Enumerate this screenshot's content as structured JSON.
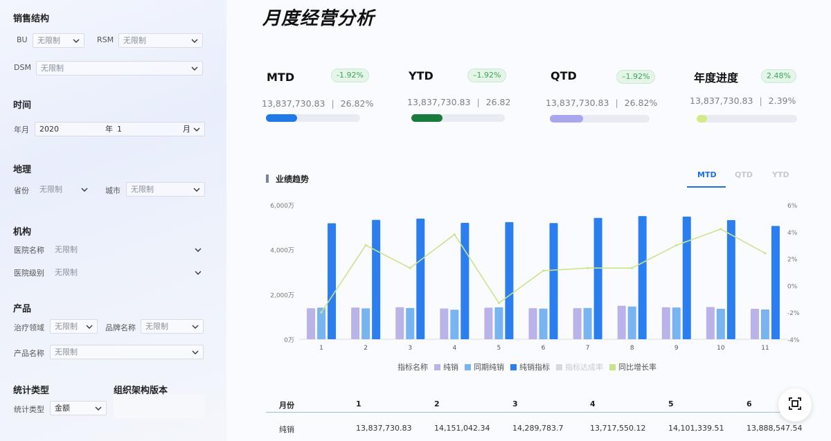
{
  "sidebar": {
    "sections": {
      "sales": "销售结构",
      "time": "时间",
      "geo": "地理",
      "org": "机构",
      "product": "产品",
      "stat": "统计类型",
      "org_version": "组织架构版本"
    },
    "labels": {
      "bu": "BU",
      "rsm": "RSM",
      "dsm": "DSM",
      "year_month": "年月",
      "year_unit": "年",
      "month_unit": "月",
      "province": "省份",
      "city": "城市",
      "hospital_name": "医院名称",
      "hospital_level": "医院级别",
      "therapy": "治疗领域",
      "brand": "品牌名称",
      "product_name": "产品名称",
      "stat_type": "统计类型"
    },
    "values": {
      "unlimited": "无限制",
      "year": "2020",
      "month": "1",
      "stat_type": "金额"
    }
  },
  "main": {
    "title": "月度经营分析",
    "kpis": [
      {
        "name": "MTD",
        "badge": "-1.92%",
        "value": "13,837,730.83",
        "pct": "26.82%",
        "progress": 0.33,
        "color": "#1f7ae8"
      },
      {
        "name": "YTD",
        "badge": "–1.92%",
        "value": "13,837,730.83",
        "pct": "26.82",
        "progress": 0.33,
        "color": "#187a3c"
      },
      {
        "name": "QTD",
        "badge": "–1.92%",
        "value": "13,837,730.83",
        "pct": "26.82%",
        "progress": 0.33,
        "color": "#a9a6ee"
      },
      {
        "name": "年度进度",
        "badge": "2.48%",
        "value": "13,837,730.83",
        "pct": "2.39%",
        "progress": 0.1,
        "color": "#d3ea85"
      }
    ],
    "section_title": "业绩趋势",
    "tabs": [
      "MTD",
      "QTD",
      "YTD"
    ],
    "legend": {
      "title": "指标名称",
      "items": [
        {
          "name": "纯销",
          "color": "#b9b3ea"
        },
        {
          "name": "同期纯销",
          "color": "#79b4f2"
        },
        {
          "name": "纯销指标",
          "color": "#2b7ef0"
        },
        {
          "name": "指标达成率",
          "color": "#d7d9de"
        },
        {
          "name": "同比增长率",
          "color": "#c9e58a"
        }
      ]
    },
    "table": {
      "headers": [
        "月份",
        "1",
        "2",
        "3",
        "4",
        "5",
        "6"
      ],
      "rows": [
        {
          "label": "纯销",
          "values": [
            "13,837,730.83",
            "14,151,042.34",
            "14,289,783.7",
            "13,717,550.12",
            "14,101,339.51",
            "13,888,547.54"
          ]
        }
      ]
    }
  },
  "chart_data": {
    "type": "bar",
    "categories": [
      "1",
      "2",
      "3",
      "4",
      "5",
      "6",
      "7",
      "8",
      "9",
      "10",
      "11"
    ],
    "y_left_ticks": [
      "0万",
      "2,000万",
      "4,000万",
      "6,000万"
    ],
    "y_left_range": [
      0,
      6000
    ],
    "y_right_ticks": [
      "-4%",
      "-2%",
      "0%",
      "2%",
      "4%",
      "6%"
    ],
    "y_right_range": [
      -4,
      6
    ],
    "series": [
      {
        "name": "纯销",
        "axis": "left",
        "type": "bar",
        "color": "#b9b3ea",
        "values": [
          1384,
          1415,
          1429,
          1372,
          1410,
          1389,
          1389,
          1495,
          1425,
          1440,
          1360
        ]
      },
      {
        "name": "同期纯销",
        "axis": "left",
        "type": "bar",
        "color": "#79b4f2",
        "values": [
          1410,
          1380,
          1395,
          1320,
          1425,
          1370,
          1395,
          1460,
          1420,
          1360,
          1330
        ]
      },
      {
        "name": "纯销指标",
        "axis": "left",
        "type": "bar",
        "color": "#2b7ef0",
        "values": [
          5180,
          5330,
          5390,
          5200,
          5230,
          5190,
          5420,
          5500,
          5480,
          5320,
          5060
        ]
      },
      {
        "name": "同比增长率",
        "axis": "right",
        "type": "line",
        "color": "#c9e58a",
        "values": [
          -2.0,
          3.0,
          1.3,
          3.8,
          -1.3,
          1.1,
          1.3,
          1.3,
          3.0,
          4.2,
          2.4
        ]
      }
    ]
  }
}
